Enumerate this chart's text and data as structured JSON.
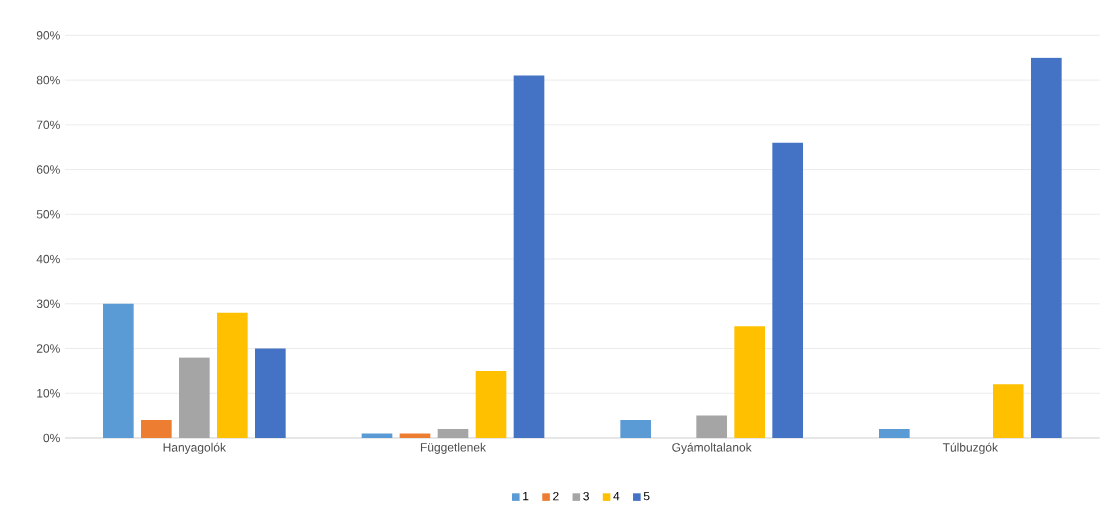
{
  "chart_data": {
    "type": "bar",
    "categories": [
      "Hanyagolók",
      "Függetlenek",
      "Gyámoltalanok",
      "Túlbuzgók"
    ],
    "series": [
      {
        "name": "1",
        "color": "#5b9bd5",
        "values": [
          30,
          1,
          4,
          2
        ]
      },
      {
        "name": "2",
        "color": "#ed7d31",
        "values": [
          4,
          1,
          0,
          0
        ]
      },
      {
        "name": "3",
        "color": "#a5a5a5",
        "values": [
          18,
          2,
          5,
          0
        ]
      },
      {
        "name": "4",
        "color": "#ffc000",
        "values": [
          28,
          15,
          25,
          12
        ]
      },
      {
        "name": "5",
        "color": "#4472c4",
        "values": [
          20,
          81,
          66,
          85
        ]
      }
    ],
    "ylim": [
      0,
      90
    ],
    "yticks": [
      {
        "value": 0,
        "label": "0%"
      },
      {
        "value": 10,
        "label": "10%"
      },
      {
        "value": 20,
        "label": "20%"
      },
      {
        "value": 30,
        "label": "30%"
      },
      {
        "value": 40,
        "label": "40%"
      },
      {
        "value": 50,
        "label": "50%"
      },
      {
        "value": 60,
        "label": "60%"
      },
      {
        "value": 70,
        "label": "70%"
      },
      {
        "value": 80,
        "label": "80%"
      },
      {
        "value": 90,
        "label": "90%"
      }
    ],
    "grid": "y",
    "legend": "bottom"
  }
}
